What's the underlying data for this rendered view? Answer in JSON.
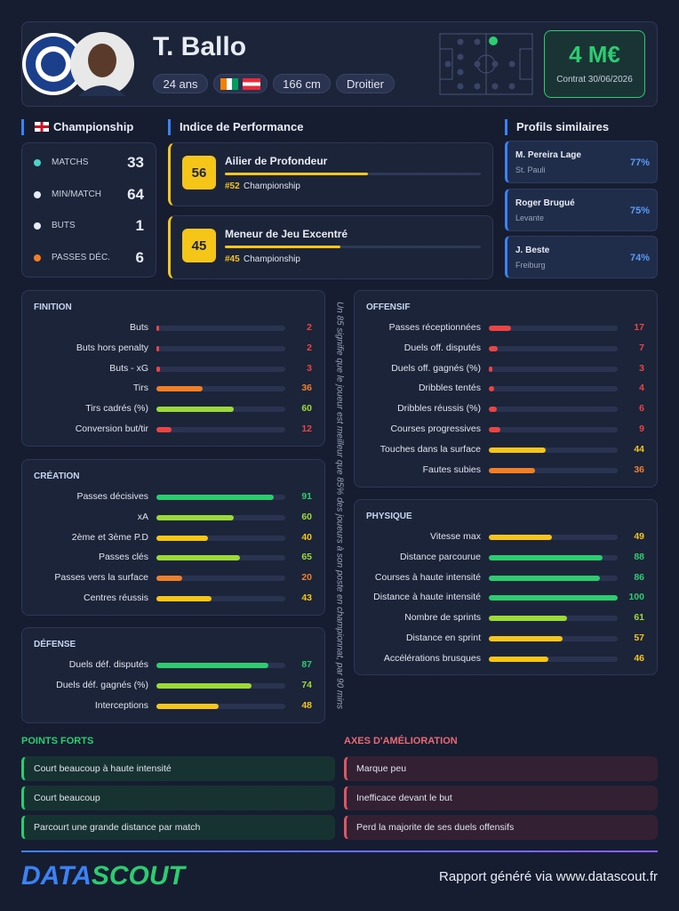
{
  "header": {
    "name": "T. Ballo",
    "age": "24 ans",
    "height": "166 cm",
    "foot": "Droitier",
    "value": "4 M€",
    "contract": "Contrat 30/06/2026"
  },
  "league": {
    "name": "Championship",
    "stats": [
      {
        "label": "MATCHS",
        "value": 33
      },
      {
        "label": "MIN/MATCH",
        "value": 64
      },
      {
        "label": "BUTS",
        "value": 1
      },
      {
        "label": "PASSES DÉC.",
        "value": 6
      }
    ]
  },
  "performance": {
    "title": "Indice de Performance",
    "roles": [
      {
        "score": 56,
        "role": "Ailier de Profondeur",
        "rank": "#52",
        "league": "Championship"
      },
      {
        "score": 45,
        "role": "Meneur de Jeu Excentré",
        "rank": "#45",
        "league": "Championship"
      }
    ]
  },
  "similar": {
    "title": "Profils similaires",
    "players": [
      {
        "name": "M. Pereira Lage",
        "club": "St. Pauli",
        "score": "77%"
      },
      {
        "name": "Roger Brugué",
        "club": "Levante",
        "score": "75%"
      },
      {
        "name": "J. Beste",
        "club": "Freiburg",
        "score": "74%"
      }
    ]
  },
  "sections": [
    {
      "title": "FINITION",
      "metrics": [
        {
          "label": "Buts",
          "value": 2
        },
        {
          "label": "Buts hors penalty",
          "value": 2
        },
        {
          "label": "Buts - xG",
          "value": 3
        },
        {
          "label": "Tirs",
          "value": 36
        },
        {
          "label": "Tirs cadrés (%)",
          "value": 60
        },
        {
          "label": "Conversion but/tir",
          "value": 12
        }
      ]
    },
    {
      "title": "CRÉATION",
      "metrics": [
        {
          "label": "Passes décisives",
          "value": 91
        },
        {
          "label": "xA",
          "value": 60
        },
        {
          "label": "2ème et 3ème P.D",
          "value": 40
        },
        {
          "label": "Passes clés",
          "value": 65
        },
        {
          "label": "Passes vers la surface",
          "value": 20
        },
        {
          "label": "Centres réussis",
          "value": 43
        }
      ]
    },
    {
      "title": "DÉFENSE",
      "metrics": [
        {
          "label": "Duels déf. disputés",
          "value": 87
        },
        {
          "label": "Duels déf. gagnés (%)",
          "value": 74
        },
        {
          "label": "Interceptions",
          "value": 48
        }
      ]
    },
    {
      "title": "OFFENSIF",
      "metrics": [
        {
          "label": "Passes réceptionnées",
          "value": 17
        },
        {
          "label": "Duels off. disputés",
          "value": 7
        },
        {
          "label": "Duels off. gagnés (%)",
          "value": 3
        },
        {
          "label": "Dribbles tentés",
          "value": 4
        },
        {
          "label": "Dribbles réussis (%)",
          "value": 6
        },
        {
          "label": "Courses progressives",
          "value": 9
        },
        {
          "label": "Touches dans la surface",
          "value": 44
        },
        {
          "label": "Fautes subies",
          "value": 36
        }
      ]
    },
    {
      "title": "PHYSIQUE",
      "metrics": [
        {
          "label": "Vitesse max",
          "value": 49
        },
        {
          "label": "Distance parcourue",
          "value": 88
        },
        {
          "label": "Courses à haute intensité",
          "value": 86
        },
        {
          "label": "Distance à haute intensité",
          "value": 100
        },
        {
          "label": "Nombre de sprints",
          "value": 61
        },
        {
          "label": "Distance en sprint",
          "value": 57
        },
        {
          "label": "Accélérations brusques",
          "value": 46
        }
      ]
    }
  ],
  "note": "Un 85 signifie que le joueur est meilleur que 85% des joueurs à son poste en championnat, par 90 mins",
  "strengths": {
    "title": "POINTS FORTS",
    "items": [
      "Court beaucoup à haute intensité",
      "Court beaucoup",
      "Parcourt une grande distance par match"
    ]
  },
  "weaknesses": {
    "title": "AXES D'AMÉLIORATION",
    "items": [
      "Marque peu",
      "Inefficace devant le but",
      "Perd la majorite de ses duels offensifs"
    ]
  },
  "footer": {
    "brand_data": "DATA",
    "brand_scout": "SCOUT",
    "generated": "Rapport généré via www.datascout.fr"
  }
}
